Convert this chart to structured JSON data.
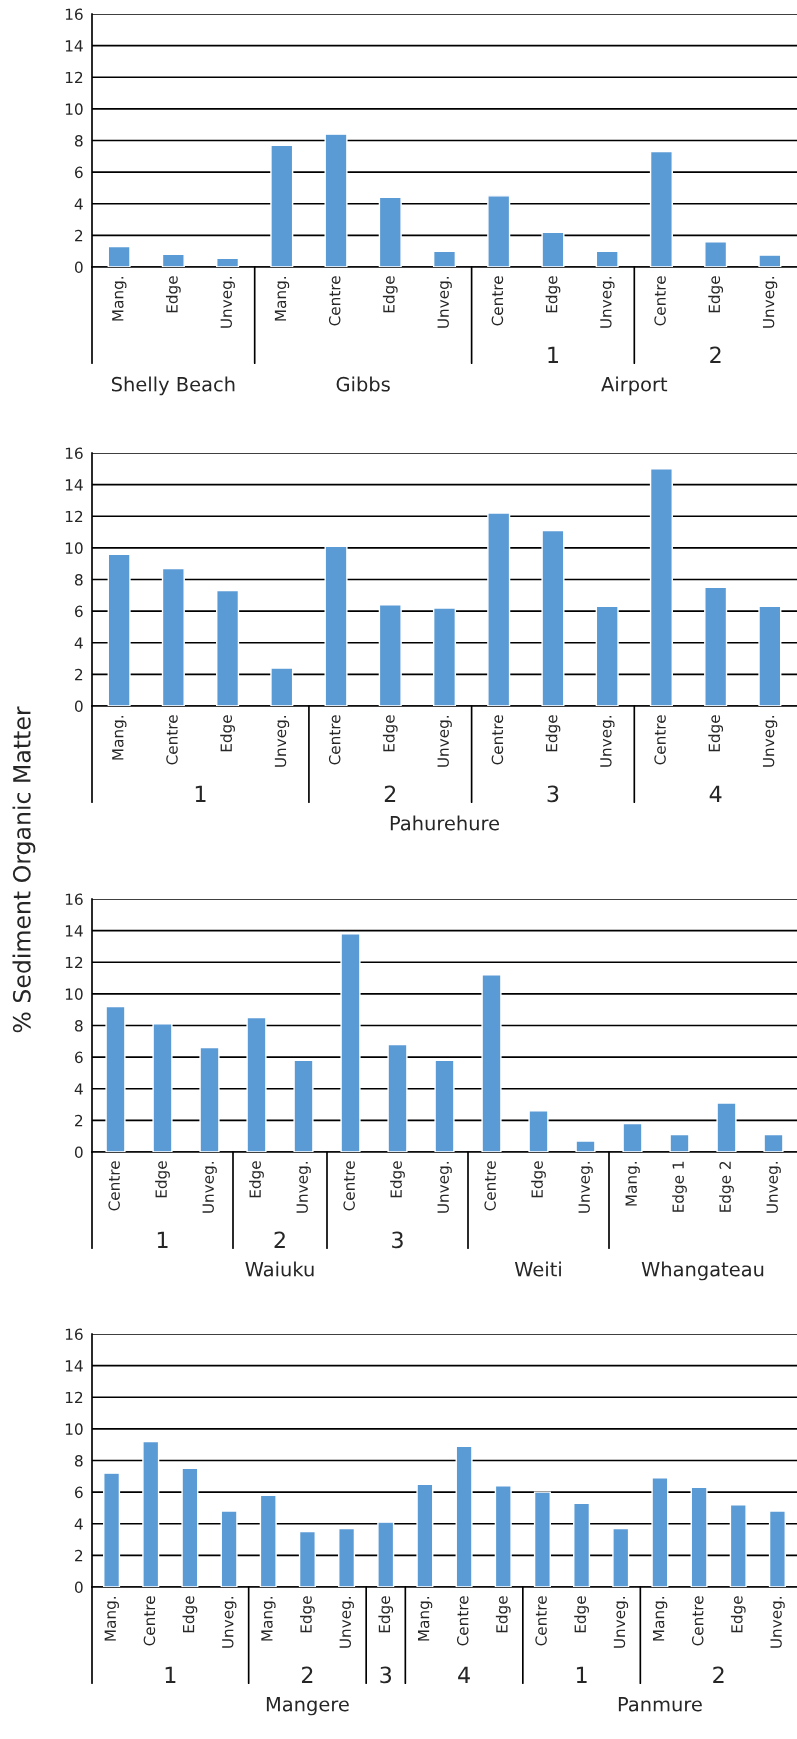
{
  "chart_data": [
    {
      "type": "bar",
      "categories": [
        "Mang.",
        "Edge",
        "Unveg.",
        "Mang.",
        "Centre",
        "Edge",
        "Unveg.",
        "Centre",
        "Edge",
        "Unveg.",
        "Centre",
        "Edge",
        "Unveg."
      ],
      "values": [
        1.3,
        0.8,
        0.55,
        7.7,
        8.4,
        4.4,
        1.0,
        4.5,
        2.2,
        1.0,
        7.3,
        1.6,
        0.75
      ],
      "color": "#5b9bd5",
      "ylim": [
        0,
        16
      ],
      "yticks": [
        0,
        2,
        4,
        6,
        8,
        10,
        12,
        14,
        16
      ],
      "grid": "y",
      "annotations": [
        "1",
        "2",
        "Shelly Beach",
        "Gibbs",
        "Airport"
      ]
    },
    {
      "type": "bar",
      "categories": [
        "Mang.",
        "Centre",
        "Edge",
        "Unveg.",
        "Centre",
        "Edge",
        "Unveg.",
        "Centre",
        "Edge",
        "Unveg.",
        "Centre",
        "Edge",
        "Unveg."
      ],
      "values": [
        9.6,
        8.7,
        7.3,
        2.4,
        10.1,
        6.4,
        6.2,
        12.2,
        11.1,
        6.3,
        15.0,
        7.5,
        6.3
      ],
      "color": "#5b9bd5",
      "ylim": [
        0,
        16
      ],
      "yticks": [
        0,
        2,
        4,
        6,
        8,
        10,
        12,
        14,
        16
      ],
      "grid": "y",
      "ylabel": "% Sediment Organic Matter",
      "annotations": [
        "1",
        "2",
        "3",
        "4",
        "Pahurehure"
      ]
    },
    {
      "type": "bar",
      "categories": [
        "Centre",
        "Edge",
        "Unveg.",
        "Edge",
        "Unveg.",
        "Centre",
        "Edge",
        "Unveg.",
        "Centre",
        "Edge",
        "Unveg.",
        "Mang.",
        "Edge 1",
        "Edge 2",
        "Unveg."
      ],
      "values": [
        9.2,
        8.1,
        6.6,
        8.5,
        5.8,
        13.8,
        6.8,
        5.8,
        11.2,
        2.6,
        0.7,
        1.8,
        1.1,
        3.1,
        1.1
      ],
      "color": "#5b9bd5",
      "ylim": [
        0,
        16
      ],
      "yticks": [
        0,
        2,
        4,
        6,
        8,
        10,
        12,
        14,
        16
      ],
      "grid": "y",
      "annotations": [
        "1",
        "2",
        "3",
        "Waiuku",
        "Weiti",
        "Whangateau"
      ]
    },
    {
      "type": "bar",
      "categories": [
        "Mang.",
        "Centre",
        "Edge",
        "Unveg.",
        "Mang.",
        "Edge",
        "Unveg.",
        "Edge",
        "Mang.",
        "Centre",
        "Edge",
        "Centre",
        "Edge",
        "Unveg.",
        "Mang.",
        "Centre",
        "Edge",
        "Unveg."
      ],
      "values": [
        7.2,
        9.2,
        7.5,
        4.8,
        5.8,
        3.5,
        3.7,
        4.1,
        6.5,
        8.9,
        6.4,
        6.0,
        5.3,
        3.7,
        6.9,
        6.3,
        5.2,
        4.8
      ],
      "color": "#5b9bd5",
      "ylim": [
        0,
        16
      ],
      "yticks": [
        0,
        2,
        4,
        6,
        8,
        10,
        12,
        14,
        16
      ],
      "grid": "y",
      "annotations": [
        "1",
        "2",
        "3",
        "4",
        "1",
        "2",
        "Mangere",
        "Panmure"
      ]
    }
  ]
}
